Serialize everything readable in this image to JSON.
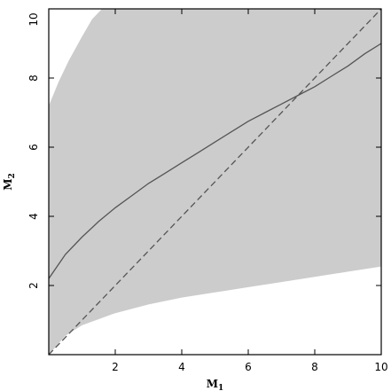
{
  "chart_data": {
    "type": "area",
    "xlabel": "M",
    "xlabel_sub": "1",
    "ylabel": "M",
    "ylabel_sub": "2",
    "xlim": [
      0,
      10
    ],
    "ylim": [
      0,
      10
    ],
    "xticks": [
      2,
      4,
      6,
      8,
      10
    ],
    "yticks": [
      2,
      4,
      6,
      8,
      10
    ],
    "grid": false,
    "colors": {
      "band": "#cccccc",
      "curve": "#555555",
      "diagonal": "#555555",
      "frame": "#000000"
    },
    "shaded_region": {
      "upper_boundary": [
        [
          0.0,
          7.2
        ],
        [
          0.3,
          7.9
        ],
        [
          0.6,
          8.5
        ],
        [
          1.0,
          9.2
        ],
        [
          1.3,
          9.7
        ],
        [
          1.6,
          10.0
        ]
      ],
      "lower_boundary": [
        [
          0.0,
          0.0
        ],
        [
          0.5,
          0.55
        ],
        [
          1.0,
          0.85
        ],
        [
          2.0,
          1.2
        ],
        [
          3.0,
          1.45
        ],
        [
          4.0,
          1.65
        ],
        [
          5.0,
          1.8
        ],
        [
          6.0,
          1.95
        ],
        [
          7.0,
          2.1
        ],
        [
          8.0,
          2.25
        ],
        [
          9.0,
          2.4
        ],
        [
          10.0,
          2.55
        ]
      ]
    },
    "series": [
      {
        "style": "solid",
        "x": [
          0,
          0.5,
          1,
          1.5,
          2,
          2.5,
          3,
          3.5,
          4,
          4.5,
          5,
          5.5,
          6,
          6.5,
          7,
          7.5,
          8,
          8.5,
          9,
          9.5,
          10
        ],
        "y": [
          2.2,
          2.9,
          3.4,
          3.85,
          4.25,
          4.6,
          4.95,
          5.25,
          5.55,
          5.85,
          6.15,
          6.45,
          6.75,
          7.0,
          7.25,
          7.5,
          7.75,
          8.05,
          8.35,
          8.7,
          9.0
        ]
      },
      {
        "style": "dashed",
        "x": [
          0,
          10
        ],
        "y": [
          0,
          10
        ]
      }
    ]
  }
}
